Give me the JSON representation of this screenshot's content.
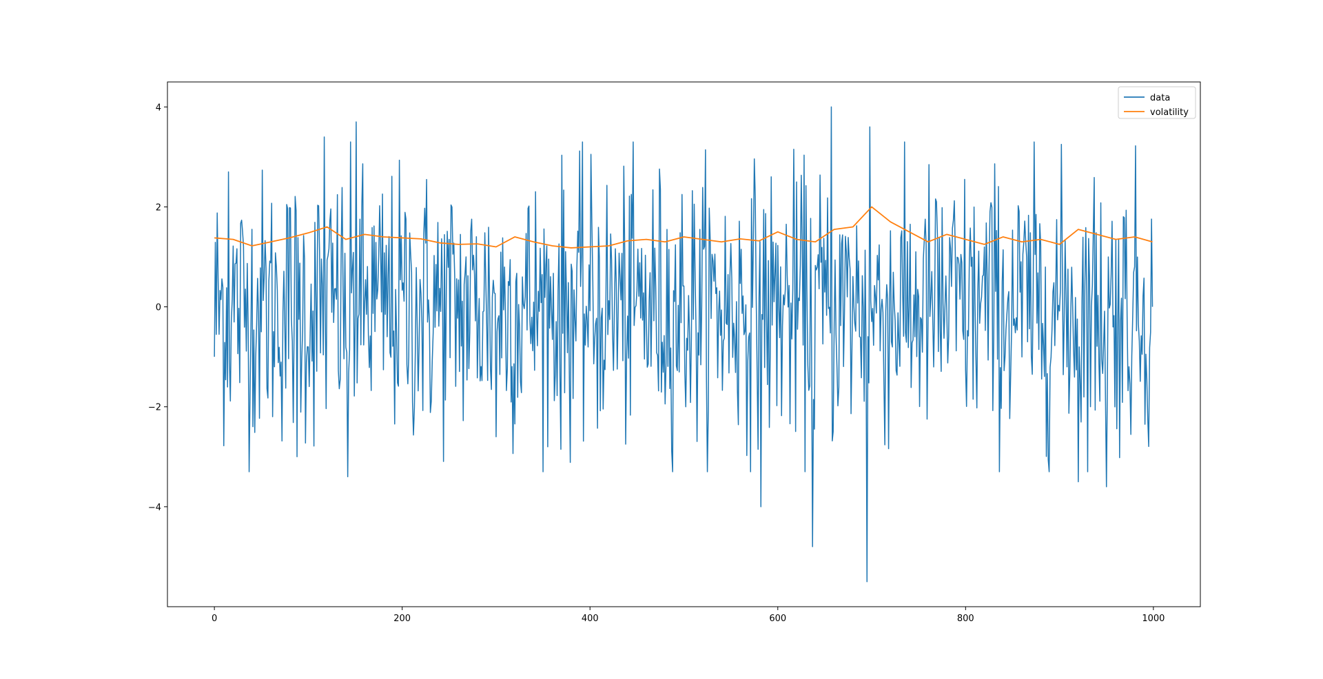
{
  "chart_data": {
    "type": "line",
    "title": "",
    "xlabel": "",
    "ylabel": "",
    "xlim": [
      -50,
      1050
    ],
    "ylim": [
      -6.0,
      4.5
    ],
    "x_ticks": [
      0,
      200,
      400,
      600,
      800,
      1000
    ],
    "y_ticks": [
      -4,
      -2,
      0,
      2,
      4
    ],
    "x_tick_labels": [
      "0",
      "200",
      "400",
      "600",
      "800",
      "1000"
    ],
    "y_tick_labels": [
      "−4",
      "−2",
      "0",
      "2",
      "4"
    ],
    "grid": false,
    "legend": {
      "position": "top-right",
      "entries": [
        "data",
        "volatility"
      ]
    },
    "colors": {
      "data": "#1f77b4",
      "volatility": "#ff7f0e"
    },
    "series": [
      {
        "name": "data",
        "n_points": 1000,
        "x_start": 0,
        "x_end": 999,
        "approx_mean": 0.0,
        "approx_std": 1.35,
        "notable_points": [
          {
            "x": 0,
            "y": -1.0
          },
          {
            "x": 15,
            "y": 2.7
          },
          {
            "x": 88,
            "y": -3.0
          },
          {
            "x": 117,
            "y": 3.4
          },
          {
            "x": 142,
            "y": -3.4
          },
          {
            "x": 151,
            "y": 3.7
          },
          {
            "x": 300,
            "y": -2.6
          },
          {
            "x": 582,
            "y": -4.0
          },
          {
            "x": 637,
            "y": -4.8
          },
          {
            "x": 657,
            "y": 4.0
          },
          {
            "x": 695,
            "y": -5.5
          },
          {
            "x": 698,
            "y": 3.6
          },
          {
            "x": 920,
            "y": -3.5
          },
          {
            "x": 950,
            "y": -3.6
          },
          {
            "x": 999,
            "y": 0.0
          }
        ]
      },
      {
        "name": "volatility",
        "x": [
          0,
          20,
          40,
          60,
          80,
          100,
          120,
          140,
          160,
          180,
          200,
          220,
          240,
          260,
          280,
          300,
          320,
          340,
          360,
          380,
          400,
          420,
          440,
          460,
          480,
          500,
          520,
          540,
          560,
          580,
          600,
          620,
          640,
          660,
          680,
          700,
          720,
          740,
          760,
          780,
          800,
          820,
          840,
          860,
          880,
          900,
          920,
          940,
          960,
          980,
          999
        ],
        "values": [
          1.38,
          1.35,
          1.22,
          1.3,
          1.38,
          1.48,
          1.6,
          1.35,
          1.45,
          1.4,
          1.38,
          1.36,
          1.28,
          1.25,
          1.26,
          1.2,
          1.4,
          1.3,
          1.22,
          1.18,
          1.2,
          1.22,
          1.32,
          1.35,
          1.3,
          1.4,
          1.35,
          1.3,
          1.36,
          1.32,
          1.5,
          1.35,
          1.3,
          1.55,
          1.6,
          2.0,
          1.7,
          1.5,
          1.3,
          1.45,
          1.35,
          1.25,
          1.4,
          1.3,
          1.35,
          1.25,
          1.55,
          1.45,
          1.35,
          1.4,
          1.3
        ]
      }
    ]
  }
}
